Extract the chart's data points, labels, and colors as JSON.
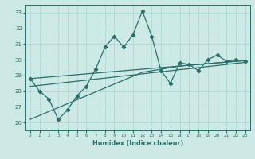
{
  "xlabel": "Humidex (Indice chaleur)",
  "ylabel": "",
  "background_color": "#cce9e6",
  "grid_color": "#aad4d0",
  "line_color": "#2a6e6a",
  "xlim": [
    -0.5,
    23.5
  ],
  "ylim": [
    25.5,
    33.5
  ],
  "yticks": [
    26,
    27,
    28,
    29,
    30,
    31,
    32,
    33
  ],
  "xticks": [
    0,
    1,
    2,
    3,
    4,
    5,
    6,
    7,
    8,
    9,
    10,
    11,
    12,
    13,
    14,
    15,
    16,
    17,
    18,
    19,
    20,
    21,
    22,
    23
  ],
  "x": [
    0,
    1,
    2,
    3,
    4,
    5,
    6,
    7,
    8,
    9,
    10,
    11,
    12,
    13,
    14,
    15,
    16,
    17,
    18,
    19,
    20,
    21,
    22,
    23
  ],
  "y_main": [
    28.8,
    28.0,
    27.5,
    26.2,
    26.8,
    27.7,
    28.3,
    29.4,
    30.8,
    31.5,
    30.8,
    31.6,
    33.1,
    31.5,
    29.3,
    28.5,
    29.8,
    29.7,
    29.3,
    30.0,
    30.3,
    29.9,
    30.0,
    29.9
  ],
  "reg_upper": [
    28.8,
    28.85,
    28.9,
    28.95,
    29.0,
    29.05,
    29.1,
    29.15,
    29.2,
    29.25,
    29.3,
    29.35,
    29.4,
    29.45,
    29.5,
    29.55,
    29.6,
    29.65,
    29.7,
    29.75,
    29.8,
    29.85,
    29.9,
    29.95
  ],
  "reg_mid": [
    28.3,
    28.37,
    28.43,
    28.5,
    28.57,
    28.63,
    28.7,
    28.77,
    28.83,
    28.9,
    28.97,
    29.03,
    29.1,
    29.17,
    29.23,
    29.3,
    29.37,
    29.43,
    29.5,
    29.57,
    29.63,
    29.7,
    29.77,
    29.83
  ],
  "reg_lower": [
    26.2,
    26.45,
    26.7,
    26.95,
    27.2,
    27.45,
    27.7,
    27.95,
    28.2,
    28.45,
    28.7,
    28.95,
    29.2,
    29.3,
    29.4,
    29.5,
    29.6,
    29.65,
    29.7,
    29.75,
    29.8,
    29.85,
    29.9,
    29.95
  ]
}
